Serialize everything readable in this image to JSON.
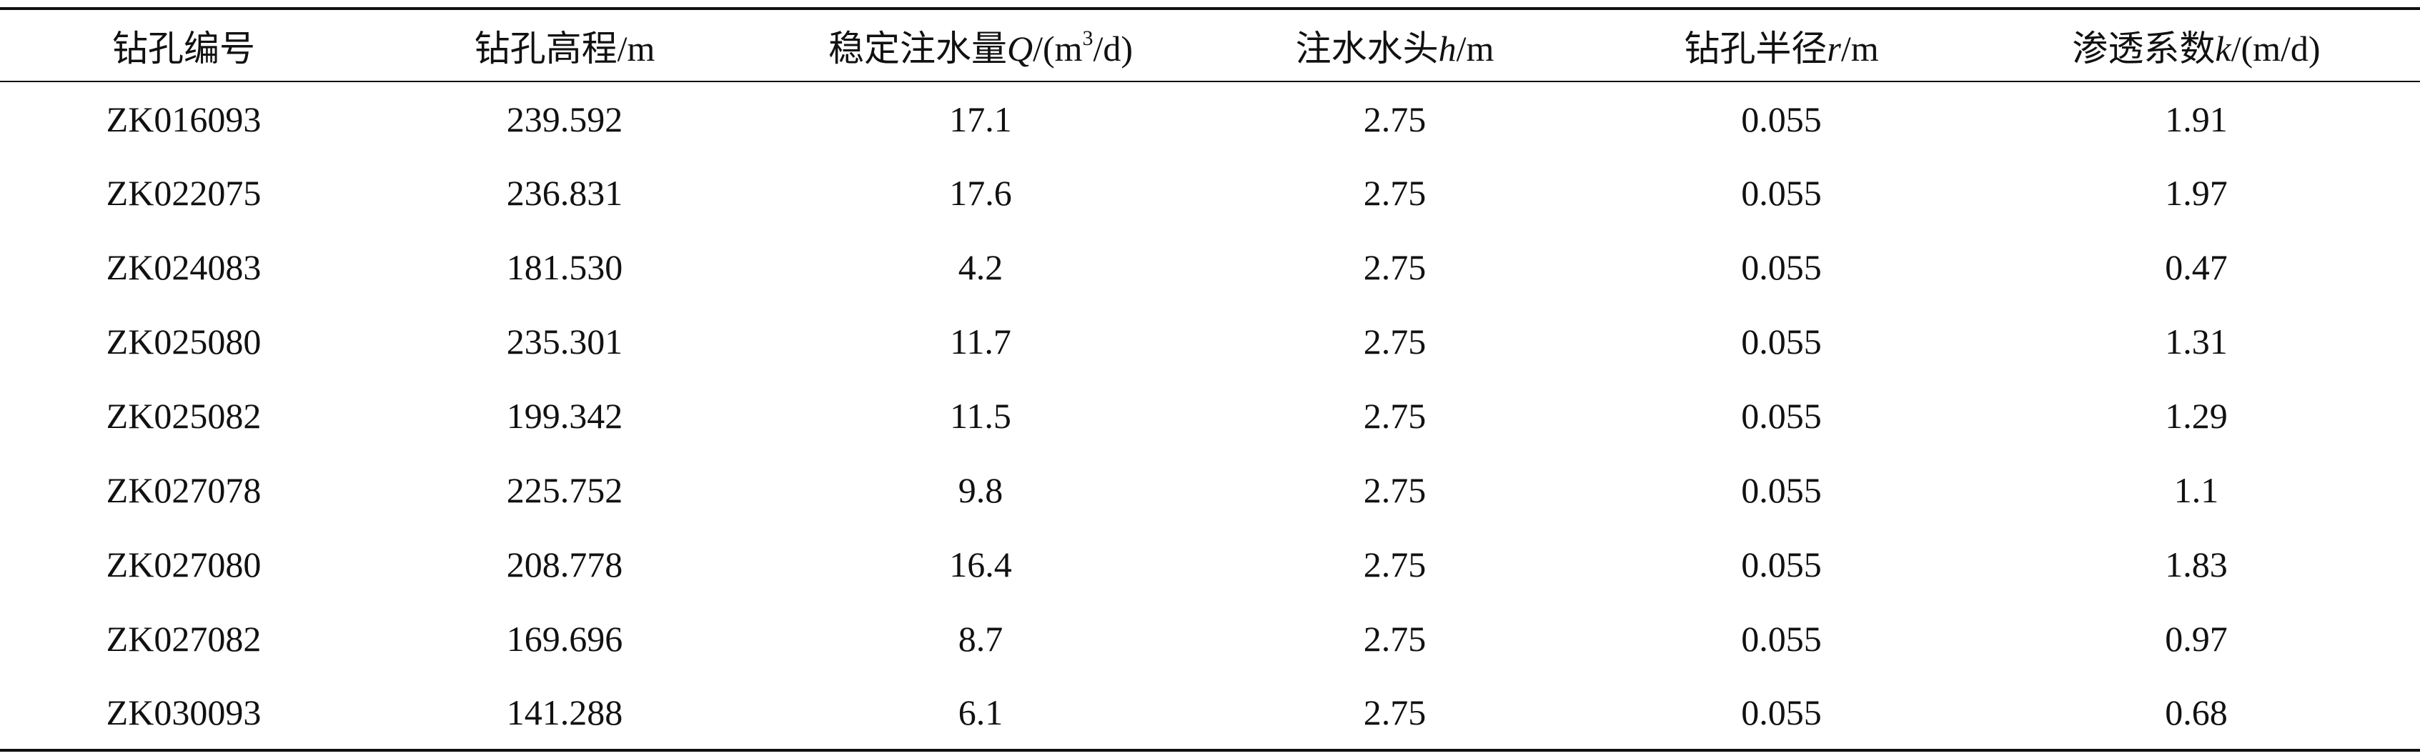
{
  "table": {
    "header": [
      [
        "钻孔编号"
      ],
      [
        "钻孔高程/m"
      ],
      [
        "稳定注水量",
        "Q",
        "/(m",
        "3",
        "/d)"
      ],
      [
        "注水水头",
        "h",
        "/m"
      ],
      [
        "钻孔半径",
        "r",
        "/m"
      ],
      [
        "渗透系数",
        "k",
        "/(m/d)"
      ]
    ],
    "rows": [
      [
        "ZK016093",
        "239.592",
        "17.1",
        "2.75",
        "0.055",
        "1.91"
      ],
      [
        "ZK022075",
        "236.831",
        "17.6",
        "2.75",
        "0.055",
        "1.97"
      ],
      [
        "ZK024083",
        "181.530",
        "4.2",
        "2.75",
        "0.055",
        "0.47"
      ],
      [
        "ZK025080",
        "235.301",
        "11.7",
        "2.75",
        "0.055",
        "1.31"
      ],
      [
        "ZK025082",
        "199.342",
        "11.5",
        "2.75",
        "0.055",
        "1.29"
      ],
      [
        "ZK027078",
        "225.752",
        "9.8",
        "2.75",
        "0.055",
        "1.1"
      ],
      [
        "ZK027080",
        "208.778",
        "16.4",
        "2.75",
        "0.055",
        "1.83"
      ],
      [
        "ZK027082",
        "169.696",
        "8.7",
        "2.75",
        "0.055",
        "0.97"
      ],
      [
        "ZK030093",
        "141.288",
        "6.1",
        "2.75",
        "0.055",
        "0.68"
      ]
    ]
  }
}
